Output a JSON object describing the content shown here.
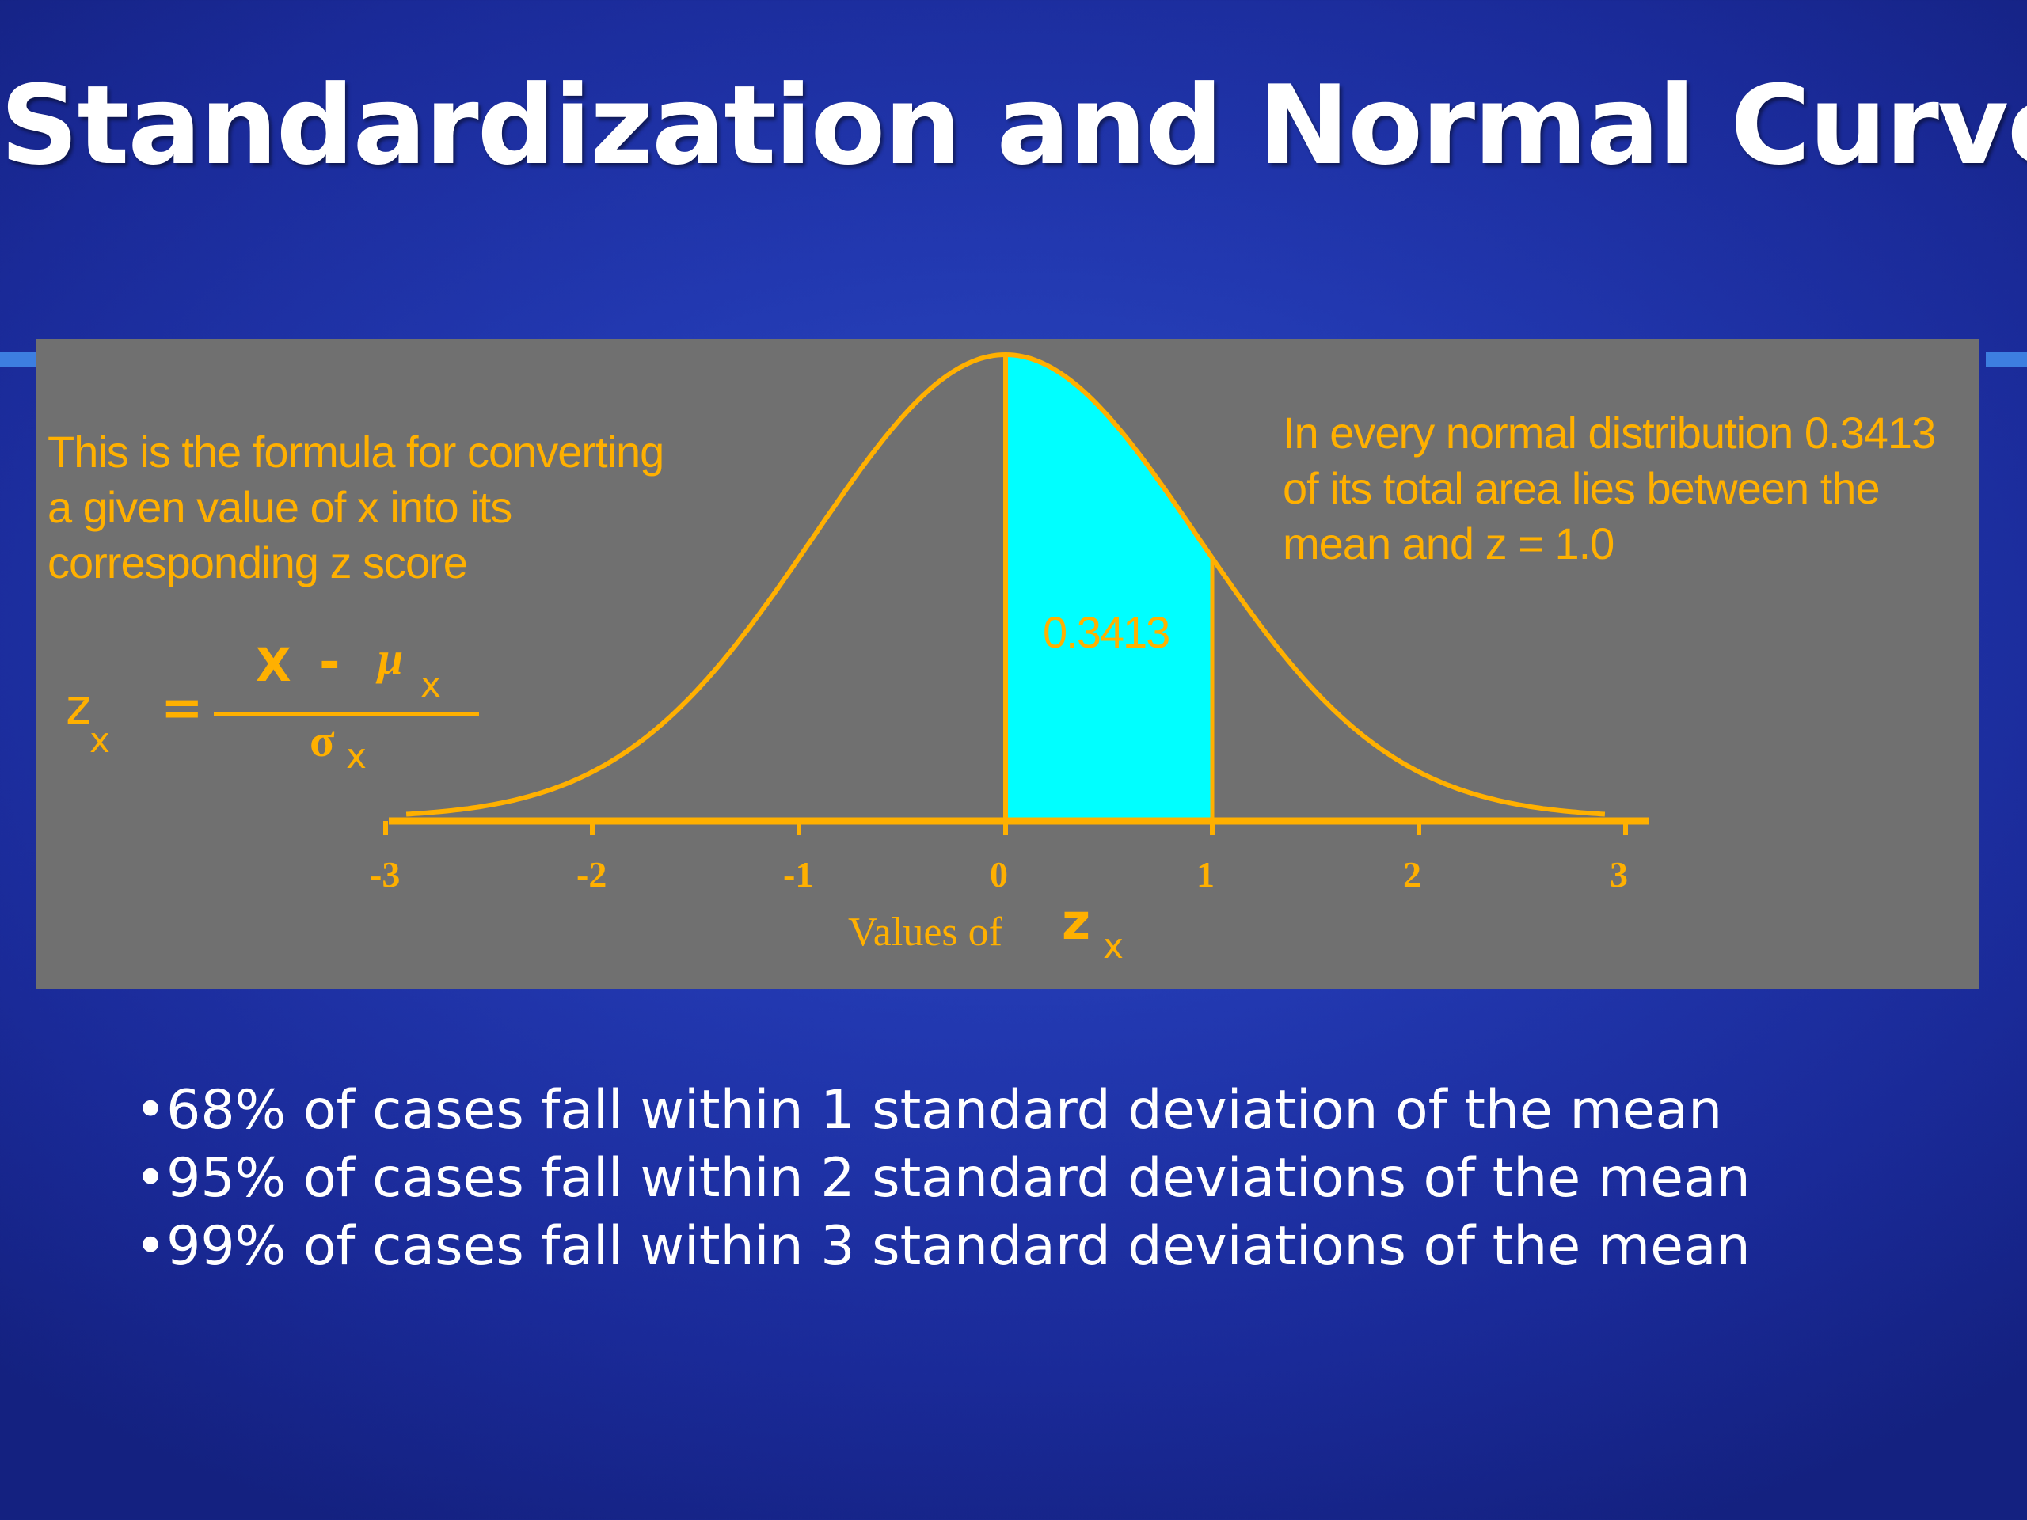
{
  "slide": {
    "title": "Standardization and Normal Curve",
    "accent_line_color": "#3d7ee0"
  },
  "figure": {
    "background_color": "#707070",
    "curve_color": "#ffb000",
    "shade_color": "#00ffff",
    "formula_note": [
      "This is the formula for converting",
      "a given value of x into its",
      "corresponding z score"
    ],
    "area_note": [
      "In every normal distribution 0.3413",
      "of its total area lies between the",
      "mean and  z = 1.0"
    ],
    "formula": {
      "lhs": "z",
      "lhs_sub": "x",
      "equals": "=",
      "numerator_x": "X",
      "minus": "-",
      "mu": "μ",
      "mu_sub": "x",
      "denominator": "σ",
      "denominator_sub": "x"
    },
    "shaded_area_label": "0.3413",
    "axis_label": "Values of",
    "axis_var": "z",
    "axis_var_sub": "x"
  },
  "chart_data": {
    "type": "area",
    "distribution": "standard normal",
    "x_ticks": [
      "-3",
      "-2",
      "-1",
      "0",
      "1",
      "2",
      "3"
    ],
    "xlim": [
      -3,
      3
    ],
    "shaded_interval": [
      0,
      1
    ],
    "shaded_area": 0.3413,
    "xlabel": "Values of z x"
  },
  "bullets": [
    "•68% of cases fall within 1 standard deviation of the mean",
    "•95% of cases fall within 2 standard deviations of the mean",
    "•99% of cases fall within 3 standard deviations of the mean"
  ]
}
